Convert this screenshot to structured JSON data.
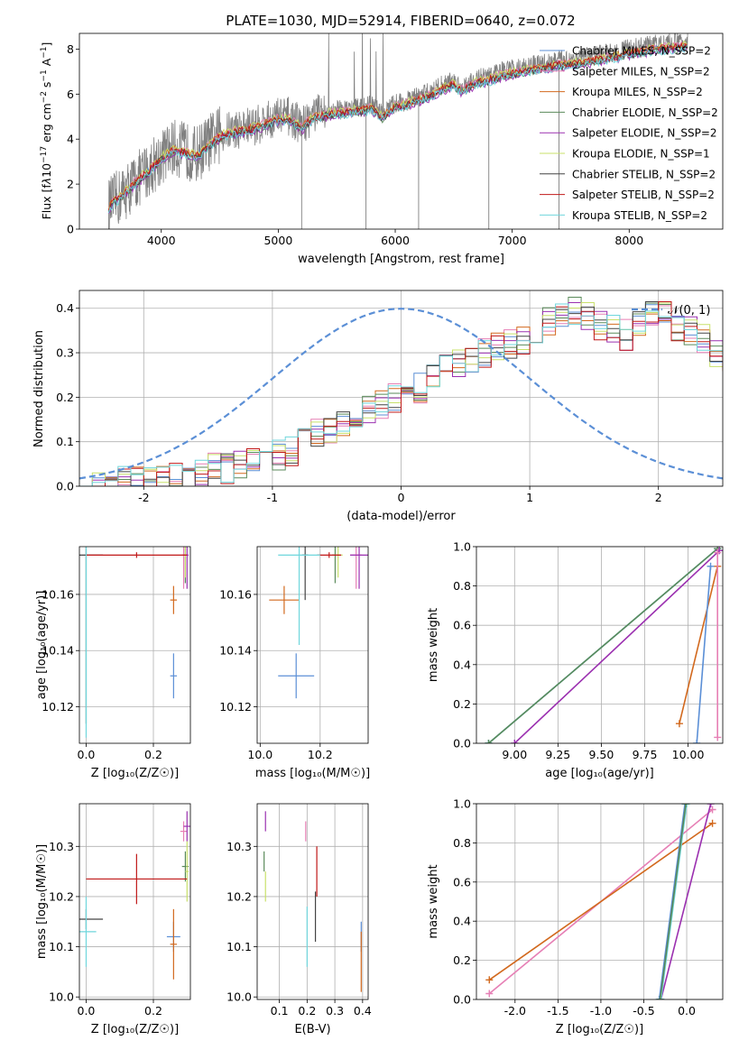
{
  "colors": {
    "Chabrier MILES": "#5b8fd6",
    "Salpeter MILES": "#e67fb5",
    "Kroupa MILES": "#d2691e",
    "Chabrier ELODIE": "#5a8a5a",
    "Salpeter ELODIE": "#9b30b0",
    "Kroupa ELODIE": "#c8e06a",
    "Chabrier STELIB": "#444444",
    "Salpeter STELIB": "#c01818",
    "Kroupa STELIB": "#6fd6dc",
    "data": "#808080",
    "normal": "#5b8fd6"
  },
  "chart_data": [
    {
      "id": "spectrum",
      "type": "line",
      "title": "PLATE=1030, MJD=52914, FIBERID=0640, z=0.072",
      "xlabel": "wavelength [Angstrom, rest frame]",
      "ylabel": "Flux [f_λ10^{-17} erg cm^{-2} s^{-1} A^{-1}]",
      "xlim": [
        3300,
        8800
      ],
      "ylim": [
        0,
        8.7
      ],
      "xticks": [
        4000,
        5000,
        6000,
        7000,
        8000
      ],
      "yticks": [
        0,
        2,
        4,
        6,
        8
      ],
      "legend_position": "upper right",
      "legend": [
        {
          "label": "Chabrier MILES, N_SSP=2",
          "model": "Chabrier MILES"
        },
        {
          "label": "Salpeter MILES, N_SSP=2",
          "model": "Salpeter MILES"
        },
        {
          "label": "Kroupa MILES, N_SSP=2",
          "model": "Kroupa MILES"
        },
        {
          "label": "Chabrier ELODIE, N_SSP=2",
          "model": "Chabrier ELODIE"
        },
        {
          "label": "Salpeter ELODIE, N_SSP=2",
          "model": "Salpeter ELODIE"
        },
        {
          "label": "Kroupa ELODIE, N_SSP=1",
          "model": "Kroupa ELODIE"
        },
        {
          "label": "Chabrier STELIB, N_SSP=2",
          "model": "Chabrier STELIB"
        },
        {
          "label": "Salpeter STELIB, N_SSP=2",
          "model": "Salpeter STELIB"
        },
        {
          "label": "Kroupa STELIB, N_SSP=2",
          "model": "Kroupa STELIB"
        }
      ],
      "continuum": [
        [
          3550,
          1.0
        ],
        [
          3700,
          1.7
        ],
        [
          3800,
          2.2
        ],
        [
          3900,
          2.7
        ],
        [
          4000,
          3.2
        ],
        [
          4100,
          3.6
        ],
        [
          4200,
          3.5
        ],
        [
          4300,
          3.3
        ],
        [
          4400,
          3.8
        ],
        [
          4500,
          4.2
        ],
        [
          4600,
          4.4
        ],
        [
          4700,
          4.5
        ],
        [
          4800,
          4.6
        ],
        [
          4900,
          4.8
        ],
        [
          5000,
          5.0
        ],
        [
          5100,
          5.0
        ],
        [
          5200,
          4.6
        ],
        [
          5300,
          5.1
        ],
        [
          5400,
          5.2
        ],
        [
          5500,
          5.3
        ],
        [
          5600,
          5.35
        ],
        [
          5700,
          5.4
        ],
        [
          5800,
          5.5
        ],
        [
          5890,
          5.1
        ],
        [
          6000,
          5.6
        ],
        [
          6100,
          5.7
        ],
        [
          6200,
          5.9
        ],
        [
          6300,
          6.1
        ],
        [
          6400,
          6.4
        ],
        [
          6500,
          6.6
        ],
        [
          6563,
          6.3
        ],
        [
          6700,
          6.7
        ],
        [
          6800,
          6.8
        ],
        [
          6900,
          7.0
        ],
        [
          7000,
          7.1
        ],
        [
          7100,
          7.2
        ],
        [
          7200,
          7.3
        ],
        [
          7300,
          7.4
        ],
        [
          7400,
          7.5
        ],
        [
          7600,
          7.6
        ],
        [
          7800,
          7.8
        ],
        [
          8000,
          8.0
        ],
        [
          8200,
          8.2
        ],
        [
          8400,
          8.3
        ],
        [
          8500,
          8.35
        ]
      ],
      "spikes_down": [
        5200,
        5750,
        6200,
        6800,
        7400
      ],
      "series": [
        {
          "model": "Chabrier MILES",
          "offset": 0.0
        },
        {
          "model": "Salpeter MILES",
          "offset": 0.1
        },
        {
          "model": "Kroupa MILES",
          "offset": 0.05
        },
        {
          "model": "Chabrier ELODIE",
          "offset": -0.05
        },
        {
          "model": "Salpeter ELODIE",
          "offset": -0.1
        },
        {
          "model": "Kroupa ELODIE",
          "offset": 0.12
        },
        {
          "model": "Chabrier STELIB",
          "offset": -0.02
        },
        {
          "model": "Salpeter STELIB",
          "offset": 0.03
        },
        {
          "model": "Kroupa STELIB",
          "offset": -0.08
        }
      ]
    },
    {
      "id": "residuals",
      "type": "line",
      "xlabel": "(data-model)/error",
      "ylabel": "Normed distribution",
      "xlim": [
        -2.5,
        2.5
      ],
      "ylim": [
        0,
        0.44
      ],
      "xticks": [
        -2,
        -1,
        0,
        1,
        2
      ],
      "yticks": [
        0.0,
        0.1,
        0.2,
        0.3,
        0.4
      ],
      "legend_position": "upper right",
      "legend": [
        {
          "label": "𝒩(0, 1)",
          "model": "normal"
        }
      ],
      "bins_start": -2.5,
      "bin_width": 0.1,
      "base_histogram": [
        0,
        0,
        0,
        0.01,
        0.01,
        0.01,
        0.02,
        0.02,
        0.03,
        0.03,
        0.04,
        0.04,
        0.05,
        0.05,
        0.06,
        0.07,
        0.08,
        0.1,
        0.12,
        0.12,
        0.14,
        0.16,
        0.17,
        0.18,
        0.2,
        0.21,
        0.22,
        0.24,
        0.26,
        0.28,
        0.28,
        0.3,
        0.31,
        0.32,
        0.33,
        0.35,
        0.37,
        0.38,
        0.39,
        0.38,
        0.36,
        0.35,
        0.34,
        0.37,
        0.39,
        0.38,
        0.36,
        0.35,
        0.33,
        0.3,
        0.29,
        0.26,
        0.28,
        0.24,
        0.22,
        0.2,
        0.19,
        0.17,
        0.15,
        0.14
      ]
    },
    {
      "id": "age_vs_Z",
      "type": "scatter",
      "xlabel": "Z [log₁₀(Z/Z☉)]",
      "ylabel": "age  [log₁₀(age/yr)]",
      "xlim": [
        -0.02,
        0.31
      ],
      "ylim": [
        10.107,
        10.177
      ],
      "xticks": [
        0.0,
        0.2
      ],
      "yticks": [
        10.12,
        10.14,
        10.16
      ],
      "points": [
        {
          "model": "Chabrier MILES",
          "x": 0.26,
          "y": 10.131,
          "xerr": 0.01,
          "yerr": 0.008
        },
        {
          "model": "Salpeter MILES",
          "x": 0.29,
          "y": 10.174,
          "xerr": 0.005,
          "yerr": 0.012
        },
        {
          "model": "Kroupa MILES",
          "x": 0.26,
          "y": 10.158,
          "xerr": 0.01,
          "yerr": 0.005
        },
        {
          "model": "Chabrier ELODIE",
          "x": 0.295,
          "y": 10.174,
          "xerr": 0.005,
          "yerr": 0.01
        },
        {
          "model": "Salpeter ELODIE",
          "x": 0.3,
          "y": 10.174,
          "xerr": 0.005,
          "yerr": 0.012
        },
        {
          "model": "Kroupa ELODIE",
          "x": 0.295,
          "y": 10.174,
          "xerr": 0.003,
          "yerr": 0.008
        },
        {
          "model": "Chabrier STELIB",
          "x": 0.0,
          "y": 10.174,
          "xerr": 0.05,
          "yerr": 0.06
        },
        {
          "model": "Salpeter STELIB",
          "x": 0.15,
          "y": 10.174,
          "xerr": 0.15,
          "yerr": 0.001
        },
        {
          "model": "Kroupa STELIB",
          "x": 0.0,
          "y": 10.174,
          "xerr": 0.0,
          "yerr": 0.065
        }
      ]
    },
    {
      "id": "age_vs_mass",
      "type": "scatter",
      "xlabel": "mass [log₁₀(M/M☉)]",
      "ylabel": "",
      "xlim": [
        9.99,
        10.36
      ],
      "ylim": [
        10.107,
        10.177
      ],
      "xticks": [
        10.0,
        10.2
      ],
      "yticks": [
        10.12,
        10.14,
        10.16
      ],
      "points": [
        {
          "model": "Chabrier MILES",
          "x": 10.12,
          "y": 10.131,
          "xerr": 0.06,
          "yerr": 0.008
        },
        {
          "model": "Salpeter MILES",
          "x": 10.32,
          "y": 10.174,
          "xerr": 0.02,
          "yerr": 0.012
        },
        {
          "model": "Kroupa MILES",
          "x": 10.08,
          "y": 10.158,
          "xerr": 0.05,
          "yerr": 0.005
        },
        {
          "model": "Chabrier ELODIE",
          "x": 10.25,
          "y": 10.174,
          "xerr": 0.01,
          "yerr": 0.01
        },
        {
          "model": "Salpeter ELODIE",
          "x": 10.33,
          "y": 10.174,
          "xerr": 0.03,
          "yerr": 0.012
        },
        {
          "model": "Kroupa ELODIE",
          "x": 10.26,
          "y": 10.174,
          "xerr": 0.015,
          "yerr": 0.008
        },
        {
          "model": "Chabrier STELIB",
          "x": 10.15,
          "y": 10.174,
          "xerr": 0.01,
          "yerr": 0.016
        },
        {
          "model": "Salpeter STELIB",
          "x": 10.23,
          "y": 10.174,
          "xerr": 0.04,
          "yerr": 0.001
        },
        {
          "model": "Kroupa STELIB",
          "x": 10.13,
          "y": 10.174,
          "xerr": 0.07,
          "yerr": 0.032
        }
      ]
    },
    {
      "id": "weight_vs_age",
      "type": "line",
      "xlabel": "age  [log₁₀(age/yr)]",
      "ylabel": "mass weight",
      "xlim": [
        8.78,
        10.2
      ],
      "ylim": [
        0,
        1.0
      ],
      "xticks": [
        9.0,
        9.25,
        9.5,
        9.75,
        10.0
      ],
      "yticks": [
        0.0,
        0.2,
        0.4,
        0.6,
        0.8,
        1.0
      ],
      "lines": [
        {
          "model": "Chabrier MILES",
          "points": [
            [
              8.85,
              0.0
            ],
            [
              10.17,
              0.99
            ]
          ]
        },
        {
          "model": "Kroupa STELIB",
          "points": [
            [
              8.85,
              0.0
            ],
            [
              10.17,
              0.99
            ]
          ]
        },
        {
          "model": "Chabrier ELODIE",
          "points": [
            [
              8.85,
              0.0
            ],
            [
              10.17,
              0.99
            ]
          ]
        },
        {
          "model": "Salpeter ELODIE",
          "points": [
            [
              9.0,
              0.0
            ],
            [
              10.18,
              0.98
            ]
          ]
        },
        {
          "model": "Kroupa MILES",
          "points": [
            [
              9.95,
              0.1
            ],
            [
              10.17,
              0.9
            ]
          ]
        },
        {
          "model": "Chabrier MILES",
          "points": [
            [
              10.05,
              0.0
            ],
            [
              10.13,
              0.9
            ]
          ]
        },
        {
          "model": "Salpeter MILES",
          "points": [
            [
              10.17,
              0.03
            ],
            [
              10.17,
              0.97
            ]
          ]
        }
      ]
    },
    {
      "id": "mass_vs_Z",
      "type": "scatter",
      "xlabel": "Z [log₁₀(Z/Z☉)]",
      "ylabel": "mass [log₁₀(M/M☉)]",
      "xlim": [
        -0.02,
        0.31
      ],
      "ylim": [
        9.995,
        10.385
      ],
      "xticks": [
        0.0,
        0.2
      ],
      "yticks": [
        10.0,
        10.1,
        10.2,
        10.3
      ],
      "points": [
        {
          "model": "Chabrier MILES",
          "x": 0.26,
          "y": 10.12,
          "xerr": 0.02,
          "yerr": 0.03
        },
        {
          "model": "Salpeter MILES",
          "x": 0.29,
          "y": 10.33,
          "xerr": 0.01,
          "yerr": 0.02
        },
        {
          "model": "Kroupa MILES",
          "x": 0.26,
          "y": 10.105,
          "xerr": 0.01,
          "yerr": 0.07
        },
        {
          "model": "Chabrier ELODIE",
          "x": 0.295,
          "y": 10.26,
          "xerr": 0.01,
          "yerr": 0.03
        },
        {
          "model": "Salpeter ELODIE",
          "x": 0.3,
          "y": 10.34,
          "xerr": 0.01,
          "yerr": 0.03
        },
        {
          "model": "Kroupa ELODIE",
          "x": 0.3,
          "y": 10.25,
          "xerr": 0.005,
          "yerr": 0.06
        },
        {
          "model": "Chabrier STELIB",
          "x": 0.0,
          "y": 10.155,
          "xerr": 0.05,
          "yerr": 0.02
        },
        {
          "model": "Salpeter STELIB",
          "x": 0.15,
          "y": 10.235,
          "xerr": 0.15,
          "yerr": 0.05
        },
        {
          "model": "Kroupa STELIB",
          "x": 0.0,
          "y": 10.13,
          "xerr": 0.03,
          "yerr": 0.07
        }
      ]
    },
    {
      "id": "mass_vs_EBV",
      "type": "scatter",
      "xlabel": "E(B-V)",
      "ylabel": "",
      "xlim": [
        0.02,
        0.42
      ],
      "ylim": [
        9.995,
        10.385
      ],
      "xticks": [
        0.1,
        0.2,
        0.3,
        0.4
      ],
      "yticks": [
        10.0,
        10.1,
        10.2,
        10.3
      ],
      "points": [
        {
          "model": "Chabrier MILES",
          "x": 0.395,
          "y": 10.12,
          "xerr": 0.0,
          "yerr": 0.03
        },
        {
          "model": "Salpeter MILES",
          "x": 0.195,
          "y": 10.33,
          "xerr": 0.0,
          "yerr": 0.02
        },
        {
          "model": "Kroupa MILES",
          "x": 0.395,
          "y": 10.07,
          "xerr": 0.0,
          "yerr": 0.06
        },
        {
          "model": "Chabrier ELODIE",
          "x": 0.045,
          "y": 10.27,
          "xerr": 0.0,
          "yerr": 0.02
        },
        {
          "model": "Salpeter ELODIE",
          "x": 0.05,
          "y": 10.35,
          "xerr": 0.0,
          "yerr": 0.02
        },
        {
          "model": "Kroupa ELODIE",
          "x": 0.05,
          "y": 10.22,
          "xerr": 0.0,
          "yerr": 0.03
        },
        {
          "model": "Chabrier STELIB",
          "x": 0.23,
          "y": 10.16,
          "xerr": 0.0,
          "yerr": 0.05
        },
        {
          "model": "Salpeter STELIB",
          "x": 0.235,
          "y": 10.25,
          "xerr": 0.0,
          "yerr": 0.05
        },
        {
          "model": "Kroupa STELIB",
          "x": 0.2,
          "y": 10.12,
          "xerr": 0.0,
          "yerr": 0.06
        }
      ]
    },
    {
      "id": "weight_vs_Z",
      "type": "line",
      "xlabel": "Z [log₁₀(Z/Z☉)]",
      "ylabel": "mass weight",
      "xlim": [
        -2.45,
        0.42
      ],
      "ylim": [
        0,
        1.0
      ],
      "xticks": [
        -2.0,
        -1.5,
        -1.0,
        -0.5,
        0.0
      ],
      "yticks": [
        0.0,
        0.2,
        0.4,
        0.6,
        0.8,
        1.0
      ],
      "lines": [
        {
          "model": "Salpeter MILES",
          "points": [
            [
              -2.3,
              0.03
            ],
            [
              0.3,
              0.97
            ]
          ]
        },
        {
          "model": "Kroupa MILES",
          "points": [
            [
              -2.3,
              0.1
            ],
            [
              0.3,
              0.9
            ]
          ]
        },
        {
          "model": "Salpeter ELODIE",
          "points": [
            [
              -0.3,
              0.0
            ],
            [
              0.28,
              1.0
            ]
          ]
        },
        {
          "model": "Chabrier MILES",
          "points": [
            [
              -0.32,
              0.0
            ],
            [
              -0.02,
              1.0
            ]
          ]
        },
        {
          "model": "Kroupa STELIB",
          "points": [
            [
              -0.3,
              0.0
            ],
            [
              0.0,
              1.0
            ]
          ]
        },
        {
          "model": "Chabrier ELODIE",
          "points": [
            [
              -0.31,
              0.0
            ],
            [
              -0.01,
              1.0
            ]
          ]
        }
      ]
    }
  ]
}
